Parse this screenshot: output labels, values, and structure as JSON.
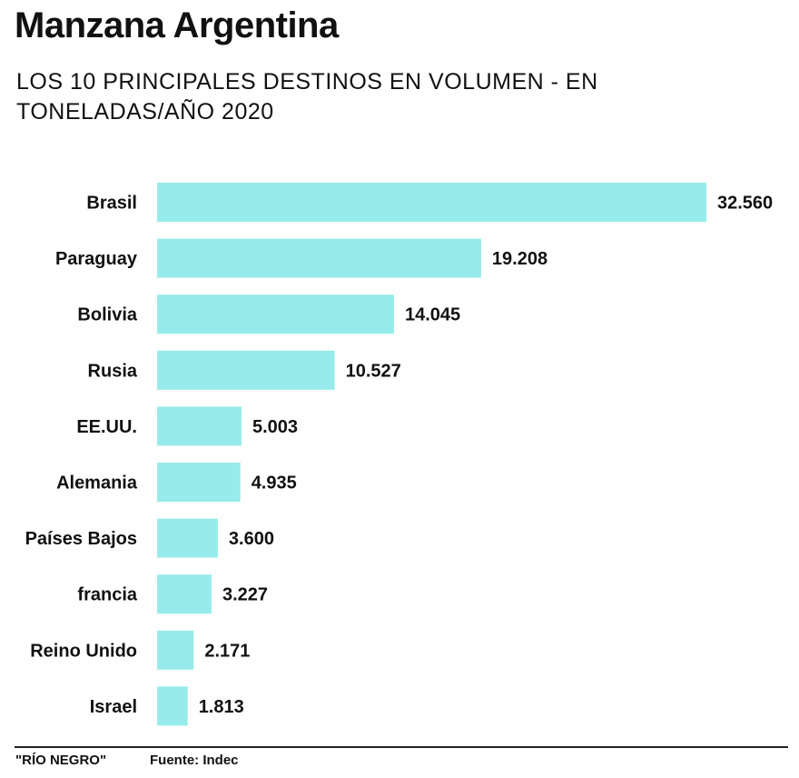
{
  "title": "Manzana Argentina",
  "subtitle": "LOS 10 PRINCIPALES DESTINOS EN VOLUMEN - EN TONELADAS/AÑO 2020",
  "footer": {
    "credit": "\"RÍO NEGRO\"",
    "source": "Fuente: Indec"
  },
  "colors": {
    "bar": "#97ebeb",
    "text": "#111111"
  },
  "chart_data": {
    "type": "bar",
    "orientation": "horizontal",
    "categories": [
      "Brasil",
      "Paraguay",
      "Bolivia",
      "Rusia",
      "EE.UU.",
      "Alemania",
      "Países Bajos",
      "francia",
      "Reino Unido",
      "Israel"
    ],
    "values": [
      32560,
      19208,
      14045,
      10527,
      5003,
      4935,
      3600,
      3227,
      2171,
      1813
    ],
    "value_labels": [
      "32.560",
      "19.208",
      "14.045",
      "10.527",
      "5.003",
      "4.935",
      "3.600",
      "3.227",
      "2.171",
      "1.813"
    ],
    "xlabel": "",
    "ylabel": "",
    "xlim": [
      0,
      32560
    ],
    "grid": false,
    "legend": "none"
  }
}
